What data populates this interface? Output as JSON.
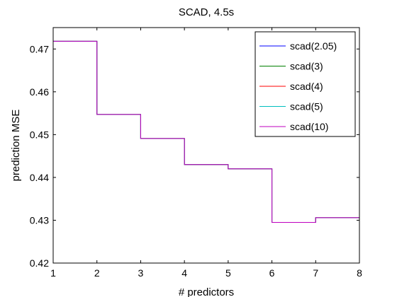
{
  "chart_data": {
    "type": "line",
    "title": "SCAD, 4.5s",
    "xlabel": "# predictors",
    "ylabel": "prediction MSE",
    "xlim": [
      1,
      8
    ],
    "ylim": [
      0.42,
      0.475
    ],
    "xticks": [
      "1",
      "2",
      "3",
      "4",
      "5",
      "6",
      "7",
      "8"
    ],
    "yticks": [
      "0.42",
      "0.43",
      "0.44",
      "0.45",
      "0.46",
      "0.47"
    ],
    "grid": false,
    "legend_position": "top-right",
    "step": true,
    "x": [
      1,
      2,
      3,
      4,
      5,
      6,
      7,
      8
    ],
    "series": [
      {
        "name": "scad(2.05)",
        "color": "#0000ff",
        "values": [
          0.4718,
          0.4547,
          0.4491,
          0.443,
          0.442,
          0.4295,
          0.4306,
          0.4306
        ]
      },
      {
        "name": "scad(3)",
        "color": "#008000",
        "values": [
          0.4718,
          0.4547,
          0.4491,
          0.443,
          0.442,
          0.4295,
          0.4306,
          0.4306
        ]
      },
      {
        "name": "scad(4)",
        "color": "#ff0000",
        "values": [
          0.4718,
          0.4547,
          0.4491,
          0.443,
          0.442,
          0.4295,
          0.4306,
          0.4306
        ]
      },
      {
        "name": "scad(5)",
        "color": "#00bfbf",
        "values": [
          0.4718,
          0.4547,
          0.4491,
          0.443,
          0.442,
          0.4295,
          0.4306,
          0.4306
        ]
      },
      {
        "name": "scad(10)",
        "color": "#bf00bf",
        "values": [
          0.4718,
          0.4547,
          0.4491,
          0.443,
          0.442,
          0.4295,
          0.4306,
          0.4306
        ]
      }
    ]
  }
}
